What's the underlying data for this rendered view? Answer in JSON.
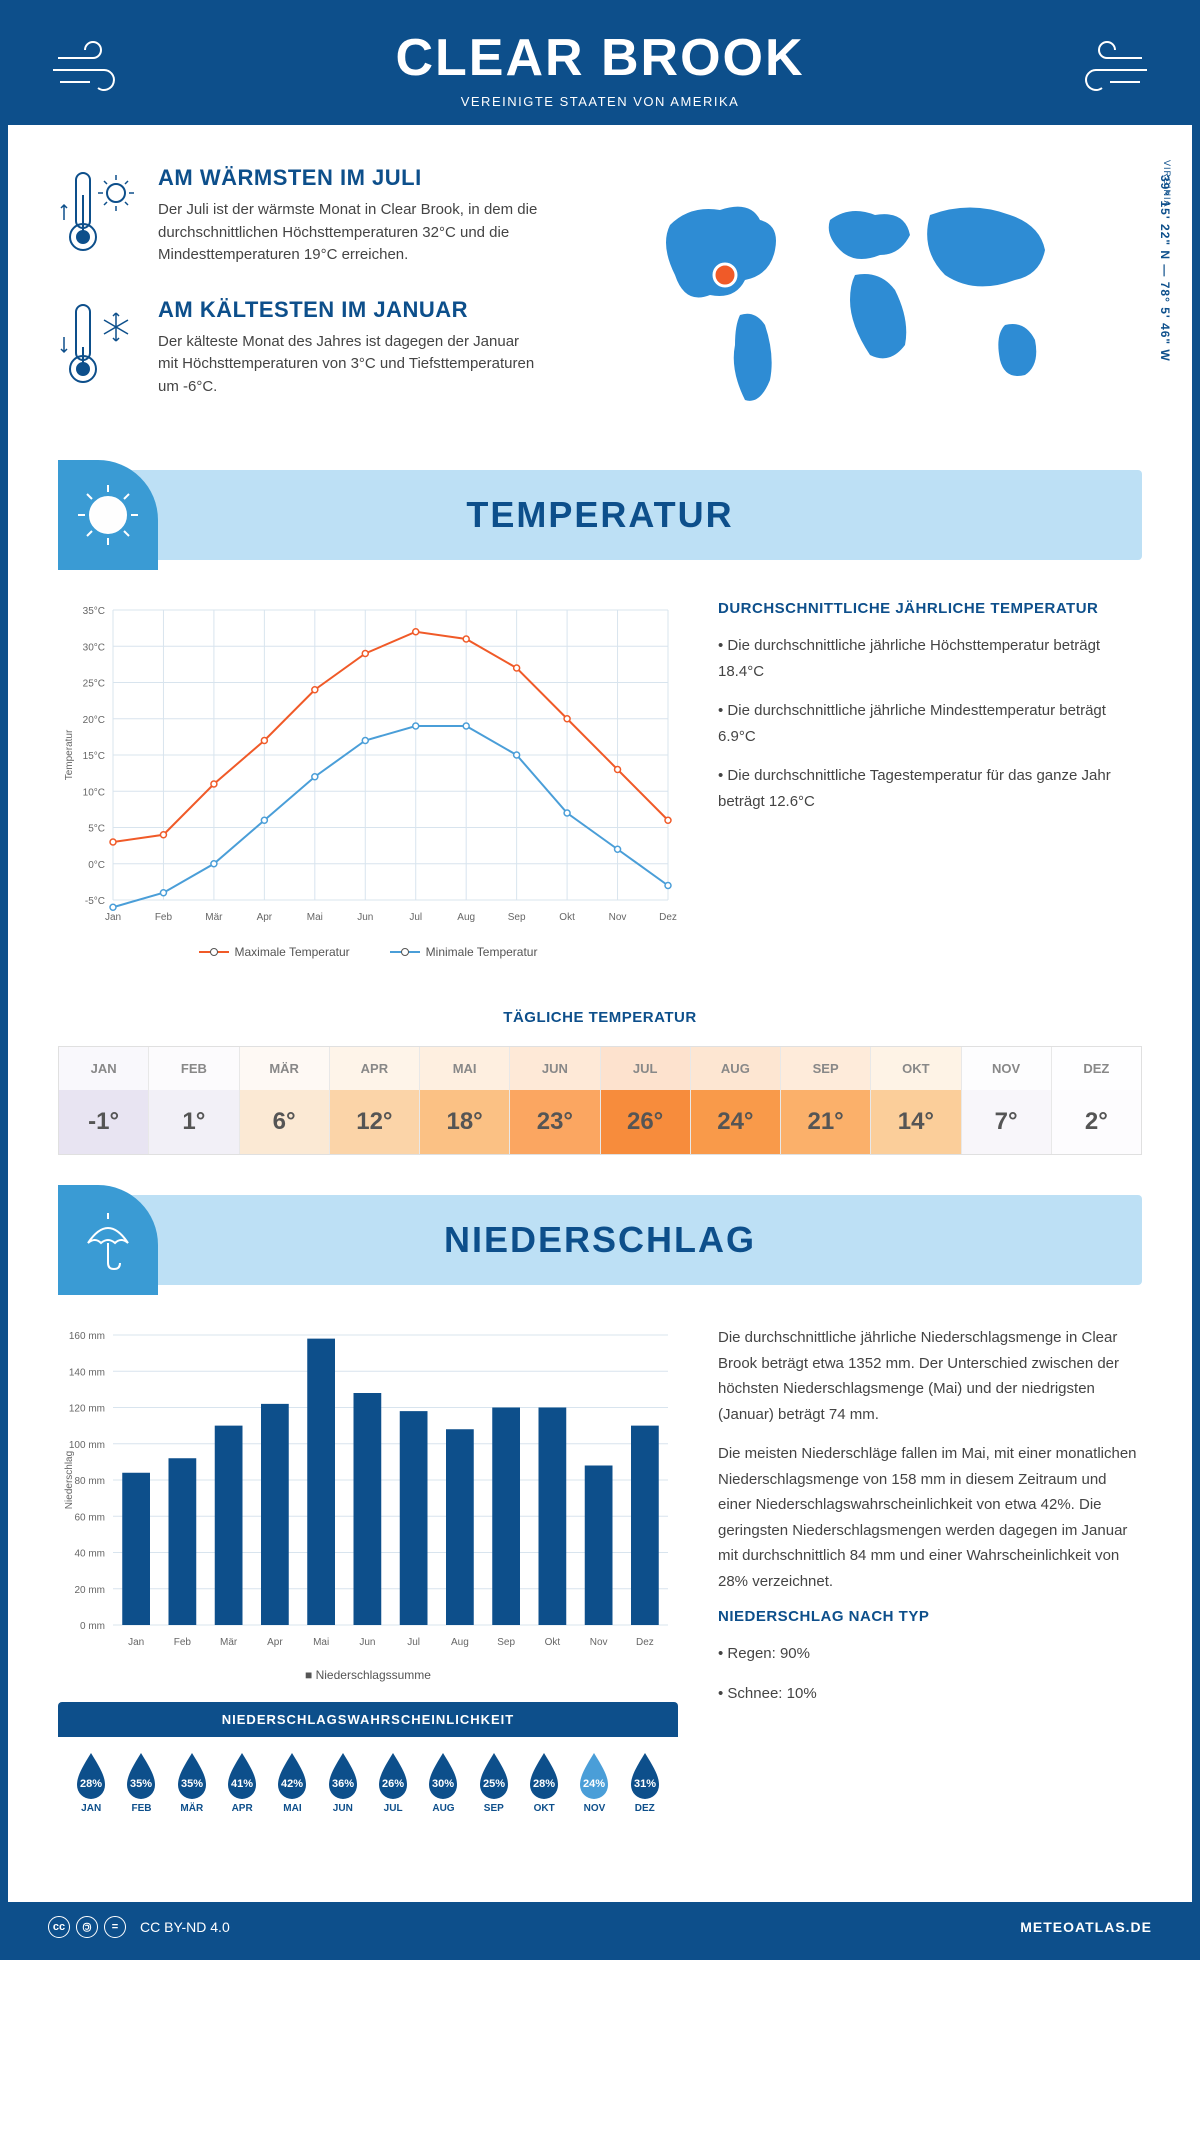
{
  "colors": {
    "primary": "#0d4f8b",
    "banner_bg": "#bde0f5",
    "banner_tab": "#3a9bd4",
    "accent": "#2e8cd4",
    "text": "#444444",
    "max_line": "#f05a28",
    "min_line": "#4a9ed8",
    "bar": "#0d4f8b",
    "grid": "#d8e4ee"
  },
  "header": {
    "title": "CLEAR BROOK",
    "subtitle": "VEREINIGTE STAATEN VON AMERIKA"
  },
  "map": {
    "coords": "39° 15' 22\" N — 78° 5' 46\" W",
    "state": "VIRGINIA",
    "marker_fill": "#f05a28"
  },
  "facts": {
    "warm": {
      "title": "AM WÄRMSTEN IM JULI",
      "body": "Der Juli ist der wärmste Monat in Clear Brook, in dem die durchschnittlichen Höchsttemperaturen 32°C und die Mindesttemperaturen 19°C erreichen."
    },
    "cold": {
      "title": "AM KÄLTESTEN IM JANUAR",
      "body": "Der kälteste Monat des Jahres ist dagegen der Januar mit Höchsttemperaturen von 3°C und Tiefsttemperaturen um -6°C."
    }
  },
  "temp_section": {
    "title": "TEMPERATUR",
    "side_title": "DURCHSCHNITTLICHE JÄHRLICHE TEMPERATUR",
    "bullets": [
      "Die durchschnittliche jährliche Höchsttemperatur beträgt 18.4°C",
      "Die durchschnittliche jährliche Mindesttemperatur beträgt 6.9°C",
      "Die durchschnittliche Tagestemperatur für das ganze Jahr beträgt 12.6°C"
    ],
    "chart": {
      "months": [
        "Jan",
        "Feb",
        "Mär",
        "Apr",
        "Mai",
        "Jun",
        "Jul",
        "Aug",
        "Sep",
        "Okt",
        "Nov",
        "Dez"
      ],
      "max": [
        3,
        4,
        11,
        17,
        24,
        29,
        32,
        31,
        27,
        20,
        13,
        6
      ],
      "min": [
        -6,
        -4,
        0,
        6,
        12,
        17,
        19,
        19,
        15,
        7,
        2,
        -3
      ],
      "ylim": [
        -5,
        35
      ],
      "ytick_step": 5,
      "ylabel": "Temperatur",
      "legend_max": "Maximale Temperatur",
      "legend_min": "Minimale Temperatur"
    },
    "daily": {
      "title": "TÄGLICHE TEMPERATUR",
      "months": [
        "JAN",
        "FEB",
        "MÄR",
        "APR",
        "MAI",
        "JUN",
        "JUL",
        "AUG",
        "SEP",
        "OKT",
        "NOV",
        "DEZ"
      ],
      "values": [
        "-1°",
        "1°",
        "6°",
        "12°",
        "18°",
        "23°",
        "26°",
        "24°",
        "21°",
        "14°",
        "7°",
        "2°"
      ],
      "cell_colors": [
        "#e8e4f2",
        "#f2f0f7",
        "#fbe9d4",
        "#fbd4a8",
        "#fbc184",
        "#fba661",
        "#f78c3c",
        "#f99a4a",
        "#fbb06a",
        "#fbce9a",
        "#f8f6fa",
        "#fdfcfe"
      ]
    }
  },
  "precip_section": {
    "title": "NIEDERSCHLAG",
    "chart": {
      "months": [
        "Jan",
        "Feb",
        "Mär",
        "Apr",
        "Mai",
        "Jun",
        "Jul",
        "Aug",
        "Sep",
        "Okt",
        "Nov",
        "Dez"
      ],
      "values": [
        84,
        92,
        110,
        122,
        158,
        128,
        118,
        108,
        120,
        120,
        88,
        110
      ],
      "ylim": [
        0,
        160
      ],
      "ytick_step": 20,
      "ylabel": "Niederschlag",
      "legend": "Niederschlagssumme"
    },
    "prob": {
      "title": "NIEDERSCHLAGSWAHRSCHEINLICHKEIT",
      "months": [
        "JAN",
        "FEB",
        "MÄR",
        "APR",
        "MAI",
        "JUN",
        "JUL",
        "AUG",
        "SEP",
        "OKT",
        "NOV",
        "DEZ"
      ],
      "values": [
        "28%",
        "35%",
        "35%",
        "41%",
        "42%",
        "36%",
        "26%",
        "30%",
        "25%",
        "28%",
        "24%",
        "31%"
      ],
      "drop_colors": [
        "#0d4f8b",
        "#0d4f8b",
        "#0d4f8b",
        "#0d4f8b",
        "#0d4f8b",
        "#0d4f8b",
        "#0d4f8b",
        "#0d4f8b",
        "#0d4f8b",
        "#0d4f8b",
        "#4a9ed8",
        "#0d4f8b"
      ]
    },
    "side_paras": [
      "Die durchschnittliche jährliche Niederschlagsmenge in Clear Brook beträgt etwa 1352 mm. Der Unterschied zwischen der höchsten Niederschlagsmenge (Mai) und der niedrigsten (Januar) beträgt 74 mm.",
      "Die meisten Niederschläge fallen im Mai, mit einer monatlichen Niederschlagsmenge von 158 mm in diesem Zeitraum und einer Niederschlagswahrscheinlichkeit von etwa 42%. Die geringsten Niederschlagsmengen werden dagegen im Januar mit durchschnittlich 84 mm und einer Wahrscheinlichkeit von 28% verzeichnet."
    ],
    "type_title": "NIEDERSCHLAG NACH TYP",
    "type_bullets": [
      "Regen: 90%",
      "Schnee: 10%"
    ]
  },
  "footer": {
    "license": "CC BY-ND 4.0",
    "site": "METEOATLAS.DE"
  }
}
